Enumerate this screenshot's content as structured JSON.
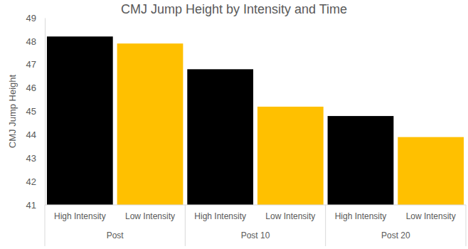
{
  "chart_data": {
    "type": "bar",
    "title": "CMJ Jump Height by Intensity and Time",
    "y_label": "CMJ Jump Height",
    "categories": [
      "Post",
      "Post 10",
      "Post 20"
    ],
    "series": [
      {
        "name": "High Intensity",
        "color": "#000000",
        "values": [
          48.2,
          46.8,
          44.8
        ]
      },
      {
        "name": "Low Intensity",
        "color": "#ffc000",
        "values": [
          47.9,
          45.2,
          43.9
        ]
      }
    ],
    "ylim": [
      41,
      49
    ],
    "yticks": [
      41,
      42,
      43,
      44,
      45,
      46,
      47,
      48,
      49
    ],
    "grid": false
  }
}
